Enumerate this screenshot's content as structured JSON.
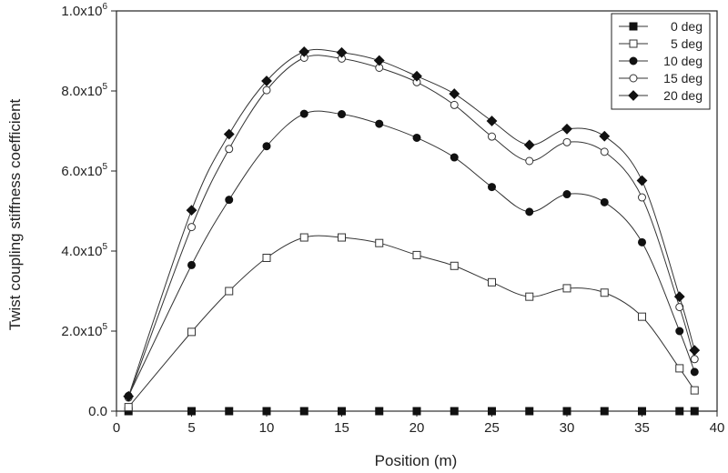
{
  "chart_data": {
    "type": "line",
    "xlabel": "Position (m)",
    "ylabel": "Twist coupling stiffness coefficient",
    "xlim": [
      0,
      40
    ],
    "ylim": [
      0,
      1000000
    ],
    "x_ticks": [
      0,
      5,
      10,
      15,
      20,
      25,
      30,
      35,
      40
    ],
    "y_ticks": [
      0,
      200000,
      400000,
      600000,
      800000,
      1000000
    ],
    "y_tick_labels": [
      {
        "mantissa": "0.0",
        "exp": ""
      },
      {
        "mantissa": "2.0x10",
        "exp": "5"
      },
      {
        "mantissa": "4.0x10",
        "exp": "5"
      },
      {
        "mantissa": "6.0x10",
        "exp": "5"
      },
      {
        "mantissa": "8.0x10",
        "exp": "5"
      },
      {
        "mantissa": "1.0x10",
        "exp": "6"
      }
    ],
    "x": [
      0.8,
      5,
      7.5,
      10,
      12.5,
      15,
      17.5,
      20,
      22.5,
      25,
      27.5,
      30,
      32.5,
      35,
      37.5,
      38.5
    ],
    "legend_position": "top-right",
    "grid": false,
    "series": [
      {
        "name": "0 deg",
        "marker": "square-filled",
        "values": [
          0,
          0,
          0,
          0,
          0,
          0,
          0,
          0,
          0,
          0,
          0,
          0,
          0,
          0,
          0,
          0
        ]
      },
      {
        "name": "5 deg",
        "marker": "square-open",
        "values": [
          10000,
          198000,
          300000,
          383000,
          434000,
          434000,
          420000,
          390000,
          363000,
          322000,
          286000,
          307000,
          296000,
          236000,
          107000,
          52000
        ]
      },
      {
        "name": "10 deg",
        "marker": "circle-filled",
        "values": [
          38000,
          365000,
          528000,
          662000,
          743000,
          742000,
          718000,
          683000,
          634000,
          560000,
          498000,
          542000,
          522000,
          422000,
          200000,
          98000
        ]
      },
      {
        "name": "15 deg",
        "marker": "circle-open",
        "values": [
          34000,
          460000,
          655000,
          802000,
          883000,
          881000,
          858000,
          822000,
          765000,
          686000,
          625000,
          672000,
          648000,
          534000,
          260000,
          130000
        ]
      },
      {
        "name": "20 deg",
        "marker": "diamond-filled",
        "values": [
          37000,
          502000,
          692000,
          825000,
          898000,
          896000,
          876000,
          837000,
          793000,
          725000,
          665000,
          705000,
          687000,
          576000,
          286000,
          152000
        ]
      }
    ]
  }
}
